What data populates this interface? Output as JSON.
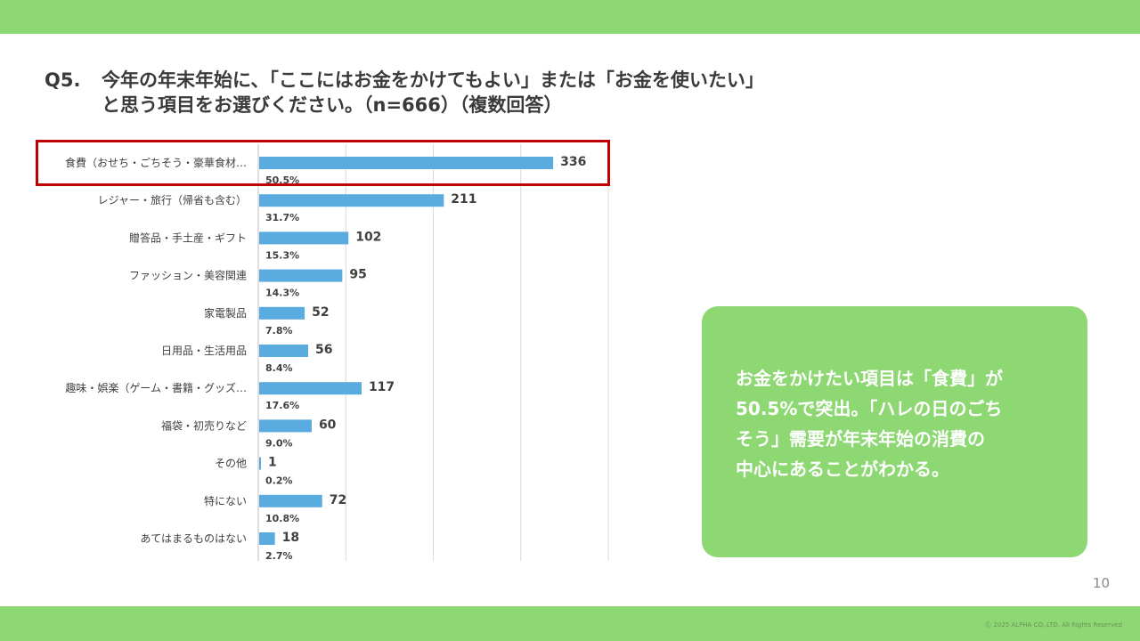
{
  "header": {
    "question_number": "Q5.",
    "title_line1": "今年の年末年始に、「ここにはお金をかけてもよい」または「お金を使いたい」",
    "title_line2": "と思う項目をお選びください。（n=666）（複数回答）"
  },
  "colors": {
    "band": "#8ed873",
    "bar": "#5aabdf",
    "highlight": "#c00000",
    "callout_bg": "#8ed873",
    "callout_text": "#ffffff"
  },
  "chart_data": {
    "type": "bar",
    "orientation": "horizontal",
    "categories": [
      "食費（おせち・ごちそう・豪華食材…",
      "レジャー・旅行（帰省も含む）",
      "贈答品・手土産・ギフト",
      "ファッション・美容関連",
      "家電製品",
      "日用品・生活用品",
      "趣味・娯楽（ゲーム・書籍・グッズ…",
      "福袋・初売りなど",
      "その他",
      "特にない",
      "あてはまるものはない"
    ],
    "values": [
      336,
      211,
      102,
      95,
      52,
      56,
      117,
      60,
      1,
      72,
      18
    ],
    "percent_labels": [
      "50.5%",
      "31.7%",
      "15.3%",
      "14.3%",
      "7.8%",
      "8.4%",
      "17.6%",
      "9.0%",
      "0.2%",
      "10.8%",
      "2.7%"
    ],
    "xlim": [
      0,
      400
    ],
    "gridlines": "vertical",
    "highlighted_category_index": 0
  },
  "callout": {
    "text": "お金をかけたい項目は「食費」が\n50.5%で突出。「ハレの日のごち\nそう」需要が年末年始の消費の\n中心にあることがわかる。"
  },
  "footer": {
    "page_number": "10",
    "copyright": "Ⓒ 2025 ALPHA CO.,LTD. All Rights Reserved"
  }
}
